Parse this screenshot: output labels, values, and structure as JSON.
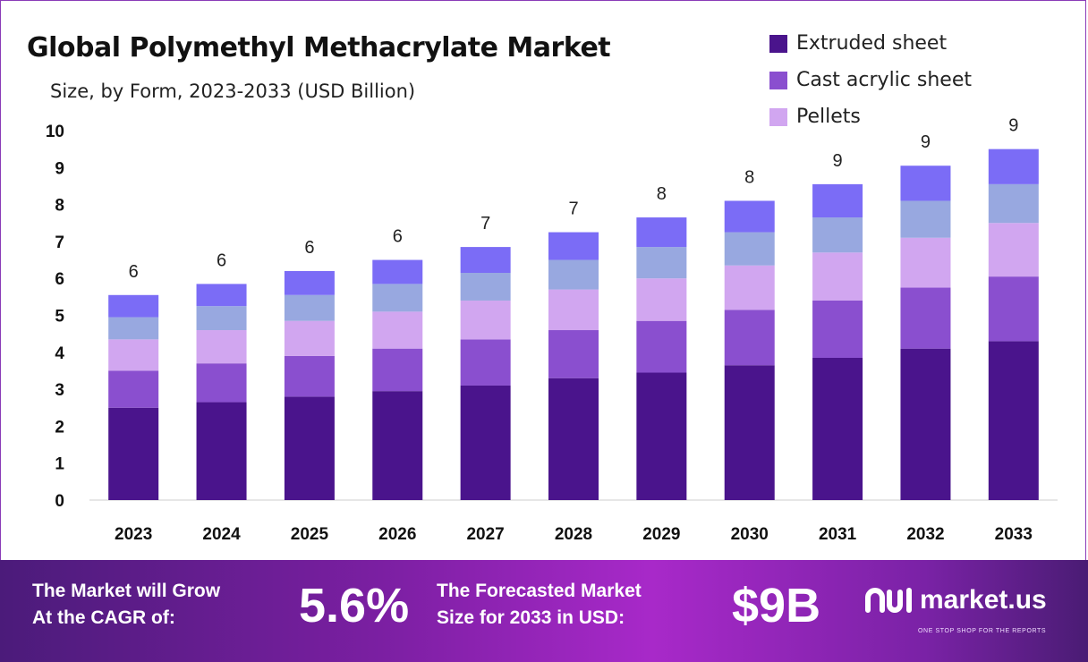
{
  "header": {
    "title": "Global Polymethyl Methacrylate Market",
    "subtitle": "Size, by Form, 2023-2033 (USD Billion)"
  },
  "legend": [
    {
      "label": "Extruded sheet",
      "color": "#4a148c"
    },
    {
      "label": "Cast acrylic sheet",
      "color": "#8a4fcf"
    },
    {
      "label": "Pellets",
      "color": "#d1a6f0"
    }
  ],
  "chart_data": {
    "type": "bar",
    "stacked": true,
    "title": "Global Polymethyl Methacrylate Market",
    "subtitle": "Size, by Form, 2023-2033 (USD Billion)",
    "xlabel": "",
    "ylabel": "",
    "ylim": [
      0,
      10
    ],
    "yticks": [
      0,
      1,
      2,
      3,
      4,
      5,
      6,
      7,
      8,
      9,
      10
    ],
    "categories": [
      "2023",
      "2024",
      "2025",
      "2026",
      "2027",
      "2028",
      "2029",
      "2030",
      "2031",
      "2032",
      "2033"
    ],
    "series": [
      {
        "name": "Extruded sheet",
        "color": "#4a148c",
        "values": [
          2.5,
          2.65,
          2.8,
          2.95,
          3.1,
          3.3,
          3.45,
          3.65,
          3.85,
          4.1,
          4.3
        ]
      },
      {
        "name": "Cast acrylic sheet",
        "color": "#8a4fcf",
        "values": [
          1.0,
          1.05,
          1.1,
          1.15,
          1.25,
          1.3,
          1.4,
          1.5,
          1.55,
          1.65,
          1.75
        ]
      },
      {
        "name": "Pellets",
        "color": "#d1a6f0",
        "values": [
          0.85,
          0.9,
          0.95,
          1.0,
          1.05,
          1.1,
          1.15,
          1.2,
          1.3,
          1.35,
          1.45
        ]
      },
      {
        "name": "",
        "color": "#98a8e0",
        "values": [
          0.6,
          0.65,
          0.7,
          0.75,
          0.75,
          0.8,
          0.85,
          0.9,
          0.95,
          1.0,
          1.05
        ]
      },
      {
        "name": "",
        "color": "#7b6cf6",
        "values": [
          0.6,
          0.6,
          0.65,
          0.65,
          0.7,
          0.75,
          0.8,
          0.85,
          0.9,
          0.95,
          0.95
        ]
      }
    ],
    "totals_labels": [
      "6",
      "6",
      "6",
      "6",
      "7",
      "7",
      "8",
      "8",
      "9",
      "9",
      "9"
    ]
  },
  "footer": {
    "cagr_text_line1": "The Market will Grow",
    "cagr_text_line2": "At the CAGR of:",
    "cagr_value": "5.6%",
    "forecast_text_line1": "The Forecasted Market",
    "forecast_text_line2": "Size for 2033 in USD:",
    "forecast_value": "$9B",
    "brand_name": "market.us",
    "brand_tagline": "ONE STOP SHOP FOR THE REPORTS"
  },
  "colors": {
    "footer_bg": "#7b1fa2",
    "axis": "#cccccc"
  }
}
